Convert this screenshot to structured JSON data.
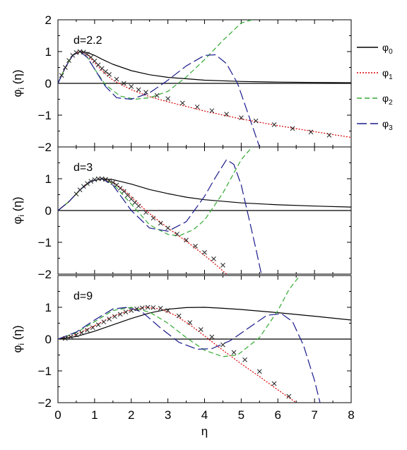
{
  "chart_data": {
    "type": "line",
    "xlabel": "η",
    "x_ticks": [
      "0",
      "1",
      "2",
      "3",
      "4",
      "5",
      "6",
      "7",
      "8"
    ],
    "xlim": [
      0,
      8
    ],
    "ylabel_main": "φ",
    "ylabel_sub": "i",
    "ylabel_arg": "(η)",
    "legend": [
      {
        "base": "φ",
        "sub": "0",
        "color": "#000000",
        "dash": "solid"
      },
      {
        "base": "φ",
        "sub": "1",
        "color": "#dd0000",
        "dash": "dotted"
      },
      {
        "base": "φ",
        "sub": "2",
        "color": "#33aa33",
        "dash": "dashed"
      },
      {
        "base": "φ",
        "sub": "3",
        "color": "#1a1a8c",
        "dash": "longdash"
      }
    ],
    "panels": [
      {
        "label": "d=2.2",
        "ylim": [
          -2,
          2
        ],
        "y_ticks": [
          "2",
          "1",
          "0",
          "−1",
          "−2"
        ],
        "series": [
          {
            "sub": "0",
            "x": [
              0,
              0.2,
              0.4,
              0.6,
              0.8,
              1.0,
              1.2,
              1.5,
              2.0,
              2.5,
              3,
              4,
              5,
              6,
              7,
              8
            ],
            "y": [
              0,
              0.5,
              0.88,
              1.0,
              0.97,
              0.88,
              0.76,
              0.6,
              0.4,
              0.27,
              0.19,
              0.1,
              0.06,
              0.04,
              0.03,
              0.02
            ]
          },
          {
            "sub": "1",
            "x": [
              0,
              0.2,
              0.4,
              0.6,
              0.8,
              1.0,
              1.2,
              1.5,
              2,
              2.5,
              3,
              4,
              5,
              6,
              7,
              8
            ],
            "y": [
              0,
              0.5,
              0.88,
              1.0,
              0.9,
              0.65,
              0.4,
              0.1,
              -0.2,
              -0.42,
              -0.58,
              -0.87,
              -1.12,
              -1.33,
              -1.52,
              -1.7
            ]
          },
          {
            "sub": "2",
            "x": [
              0,
              0.2,
              0.4,
              0.6,
              0.8,
              1.0,
              1.3,
              1.7,
              2.1,
              2.5,
              3.0,
              3.5,
              4.0,
              4.5,
              5.0,
              5.3
            ],
            "y": [
              0,
              0.5,
              0.88,
              1.0,
              0.82,
              0.45,
              -0.05,
              -0.4,
              -0.5,
              -0.45,
              -0.25,
              0.2,
              0.75,
              1.35,
              1.9,
              2.0
            ]
          },
          {
            "sub": "3",
            "x": [
              0,
              0.2,
              0.4,
              0.6,
              0.8,
              1.0,
              1.3,
              1.6,
              2.0,
              2.5,
              3.0,
              3.5,
              4.0,
              4.3,
              4.6,
              4.9,
              5.2,
              5.5
            ],
            "y": [
              0,
              0.5,
              0.88,
              1.0,
              0.82,
              0.45,
              -0.1,
              -0.45,
              -0.5,
              -0.3,
              0.1,
              0.55,
              0.88,
              0.9,
              0.62,
              0.0,
              -1.0,
              -2.0
            ]
          }
        ],
        "markers": {
          "x": [
            0.1,
            0.2,
            0.3,
            0.4,
            0.5,
            0.6,
            0.7,
            0.8,
            0.9,
            1.0,
            1.1,
            1.2,
            1.3,
            1.4,
            1.6,
            1.8,
            2.0,
            2.2,
            2.4,
            2.7,
            3.0,
            3.4,
            3.8,
            4.2,
            4.6,
            5.0,
            5.4,
            5.9,
            6.4,
            6.9,
            7.4
          ],
          "y": [
            0.25,
            0.5,
            0.72,
            0.88,
            0.97,
            1.0,
            0.98,
            0.92,
            0.82,
            0.7,
            0.58,
            0.47,
            0.37,
            0.28,
            0.13,
            0.0,
            -0.1,
            -0.2,
            -0.28,
            -0.38,
            -0.48,
            -0.62,
            -0.74,
            -0.86,
            -0.97,
            -1.08,
            -1.18,
            -1.3,
            -1.42,
            -1.53,
            -1.63
          ]
        }
      },
      {
        "label": "d=3",
        "ylim": [
          -2,
          2
        ],
        "y_ticks": [
          "2",
          "1",
          "0",
          "−1",
          "−2"
        ],
        "series": [
          {
            "sub": "0",
            "x": [
              0,
              0.3,
              0.6,
              0.9,
              1.2,
              1.5,
              2.0,
              2.5,
              3.0,
              3.5,
              4,
              5,
              6,
              7,
              8
            ],
            "y": [
              0,
              0.28,
              0.65,
              0.92,
              1.0,
              0.97,
              0.83,
              0.66,
              0.53,
              0.42,
              0.34,
              0.24,
              0.18,
              0.14,
              0.11
            ]
          },
          {
            "sub": "1",
            "x": [
              0,
              0.3,
              0.6,
              0.9,
              1.2,
              1.5,
              1.8,
              2.1,
              2.4,
              2.7,
              3.0,
              3.3,
              3.6,
              3.9,
              4.2,
              4.6
            ],
            "y": [
              0,
              0.28,
              0.65,
              0.92,
              1.0,
              0.9,
              0.65,
              0.32,
              0.0,
              -0.28,
              -0.55,
              -0.8,
              -1.05,
              -1.32,
              -1.6,
              -2.0
            ]
          },
          {
            "sub": "2",
            "x": [
              0,
              0.3,
              0.6,
              0.9,
              1.2,
              1.5,
              2.0,
              2.5,
              3.0,
              3.3,
              3.7,
              4.0,
              4.5,
              5.0,
              5.3
            ],
            "y": [
              0,
              0.28,
              0.65,
              0.92,
              1.0,
              0.85,
              0.2,
              -0.45,
              -0.75,
              -0.8,
              -0.6,
              -0.3,
              0.55,
              1.6,
              2.0
            ]
          },
          {
            "sub": "3",
            "x": [
              0,
              0.3,
              0.6,
              0.9,
              1.2,
              1.5,
              2.0,
              2.5,
              3.0,
              3.5,
              4.0,
              4.3,
              4.6,
              4.8,
              5.0,
              5.2,
              5.4,
              5.55
            ],
            "y": [
              0,
              0.28,
              0.65,
              0.92,
              1.0,
              0.8,
              0.0,
              -0.55,
              -0.65,
              -0.35,
              0.45,
              1.05,
              1.6,
              1.45,
              0.8,
              -0.2,
              -1.2,
              -2.0
            ]
          }
        ],
        "markers": {
          "x": [
            0.5,
            0.6,
            0.7,
            0.8,
            0.9,
            1.0,
            1.1,
            1.2,
            1.3,
            1.4,
            1.5,
            1.6,
            1.7,
            1.8,
            1.9,
            2.0,
            2.1,
            2.2,
            2.4,
            2.6,
            2.8,
            3.0,
            3.25,
            3.5,
            3.75,
            4.0,
            4.25,
            4.5
          ],
          "y": [
            0.52,
            0.65,
            0.76,
            0.85,
            0.92,
            0.97,
            1.0,
            1.0,
            0.98,
            0.94,
            0.88,
            0.8,
            0.7,
            0.6,
            0.48,
            0.36,
            0.25,
            0.14,
            -0.06,
            -0.24,
            -0.4,
            -0.55,
            -0.74,
            -0.93,
            -1.12,
            -1.32,
            -1.52,
            -1.72
          ]
        }
      },
      {
        "label": "d=9",
        "ylim": [
          -2,
          2
        ],
        "y_ticks": [
          "2",
          "1",
          "0",
          "−1",
          "−2"
        ],
        "series": [
          {
            "sub": "0",
            "x": [
              0,
              0.5,
              1.0,
              1.5,
              2.0,
              2.5,
              3.0,
              3.5,
              4.0,
              4.5,
              5,
              6,
              7,
              8
            ],
            "y": [
              0,
              0.08,
              0.25,
              0.45,
              0.65,
              0.82,
              0.94,
              0.99,
              1.0,
              0.97,
              0.93,
              0.83,
              0.72,
              0.6
            ]
          },
          {
            "sub": "1",
            "x": [
              0,
              0.5,
              1.0,
              1.5,
              2.0,
              2.4,
              2.8,
              3.2,
              3.6,
              4.0,
              4.5,
              5.0,
              5.5,
              6.0,
              6.5
            ],
            "y": [
              0,
              0.15,
              0.42,
              0.72,
              0.92,
              1.0,
              0.95,
              0.75,
              0.45,
              0.1,
              -0.35,
              -0.78,
              -1.18,
              -1.6,
              -2.0
            ]
          },
          {
            "sub": "2",
            "x": [
              0,
              0.5,
              1.0,
              1.5,
              2.0,
              2.5,
              3.0,
              3.5,
              4.0,
              4.5,
              4.9,
              5.5,
              6.0,
              6.3,
              6.6
            ],
            "y": [
              0,
              0.2,
              0.55,
              0.9,
              1.0,
              0.85,
              0.5,
              0.05,
              -0.35,
              -0.55,
              -0.5,
              0.05,
              0.9,
              1.55,
              2.0
            ]
          },
          {
            "sub": "3",
            "x": [
              0,
              0.5,
              1.0,
              1.5,
              1.9,
              2.3,
              2.8,
              3.3,
              3.8,
              4.2,
              4.7,
              5.2,
              5.7,
              6.1,
              6.4,
              6.7,
              7.0,
              7.15
            ],
            "y": [
              0,
              0.22,
              0.6,
              0.95,
              1.0,
              0.85,
              0.35,
              -0.1,
              -0.32,
              -0.3,
              -0.05,
              0.35,
              0.75,
              0.8,
              0.55,
              -0.2,
              -1.3,
              -2.0
            ]
          }
        ],
        "markers": {
          "x": [
            0.2,
            0.35,
            0.5,
            0.65,
            0.8,
            0.95,
            1.1,
            1.25,
            1.4,
            1.55,
            1.7,
            1.85,
            2.0,
            2.15,
            2.3,
            2.45,
            2.6,
            2.8,
            3.0,
            3.3,
            3.6,
            3.9,
            4.2,
            4.5,
            4.8,
            5.1,
            5.5,
            5.9,
            6.3
          ],
          "y": [
            0.02,
            0.07,
            0.13,
            0.2,
            0.28,
            0.36,
            0.45,
            0.54,
            0.63,
            0.71,
            0.78,
            0.85,
            0.9,
            0.95,
            0.98,
            1.0,
            0.99,
            0.97,
            0.9,
            0.73,
            0.52,
            0.3,
            0.07,
            -0.18,
            -0.42,
            -0.65,
            -1.02,
            -1.4,
            -1.8
          ]
        }
      }
    ]
  }
}
